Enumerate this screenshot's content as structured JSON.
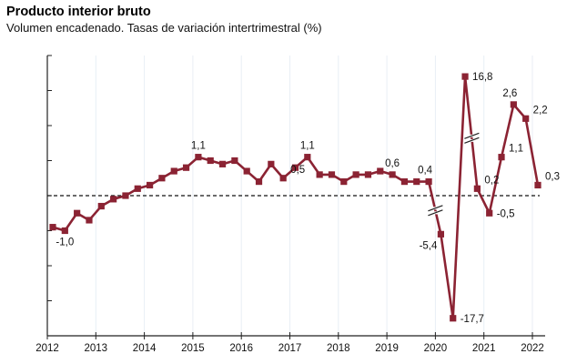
{
  "chart_data": {
    "type": "line",
    "title": "Producto interior bruto",
    "subtitle": "Volumen encadenado. Tasas de variación intertrimestral (%)",
    "xlabel": "",
    "ylabel": "",
    "ylim": [
      -4,
      4
    ],
    "y_axis_broken": true,
    "y_tick_values": [
      -4,
      -3,
      -2,
      -1,
      0,
      1,
      2,
      3,
      4
    ],
    "y_tick_labels_shown": false,
    "x_tick_labels": [
      "2012",
      "2013",
      "2014",
      "2015",
      "2016",
      "2017",
      "2018",
      "2019",
      "2020",
      "2021",
      "2022"
    ],
    "grid": "vertical-at-years",
    "reference_line": {
      "value": 0,
      "style": "dashed"
    },
    "series": [
      {
        "name": "PIB",
        "color": "#8b2333",
        "x": [
          "2012T1",
          "2012T2",
          "2012T3",
          "2012T4",
          "2013T1",
          "2013T2",
          "2013T3",
          "2013T4",
          "2014T1",
          "2014T2",
          "2014T3",
          "2014T4",
          "2015T1",
          "2015T2",
          "2015T3",
          "2015T4",
          "2016T1",
          "2016T2",
          "2016T3",
          "2016T4",
          "2017T1",
          "2017T2",
          "2017T3",
          "2017T4",
          "2018T1",
          "2018T2",
          "2018T3",
          "2018T4",
          "2019T1",
          "2019T2",
          "2019T3",
          "2019T4",
          "2020T1",
          "2020T2",
          "2020T3",
          "2020T4",
          "2021T1",
          "2021T2",
          "2021T3",
          "2021T4",
          "2022T1"
        ],
        "values": [
          -0.9,
          -1.0,
          -0.5,
          -0.7,
          -0.3,
          -0.1,
          0.0,
          0.2,
          0.3,
          0.5,
          0.7,
          0.8,
          1.1,
          1.0,
          0.9,
          1.0,
          0.7,
          0.4,
          0.9,
          0.5,
          0.8,
          1.1,
          0.6,
          0.6,
          0.4,
          0.6,
          0.6,
          0.7,
          0.6,
          0.4,
          0.4,
          0.4,
          -5.4,
          -17.7,
          16.8,
          0.2,
          -0.5,
          1.1,
          2.6,
          2.2,
          0.3
        ],
        "plotted_values_on_broken_axis": [
          -0.9,
          -1.0,
          -0.5,
          -0.7,
          -0.3,
          -0.1,
          0.0,
          0.2,
          0.3,
          0.5,
          0.7,
          0.8,
          1.1,
          1.0,
          0.9,
          1.0,
          0.7,
          0.4,
          0.9,
          0.5,
          0.8,
          1.1,
          0.6,
          0.6,
          0.4,
          0.6,
          0.6,
          0.7,
          0.6,
          0.4,
          0.4,
          0.4,
          -1.1,
          -3.5,
          3.4,
          0.2,
          -0.5,
          1.1,
          2.6,
          2.2,
          0.3
        ]
      }
    ],
    "annotations": [
      {
        "index": 1,
        "text": "-1,0",
        "pos": "below"
      },
      {
        "index": 12,
        "text": "1,1",
        "pos": "above"
      },
      {
        "index": 19,
        "text": "0,5",
        "pos": "right-up"
      },
      {
        "index": 21,
        "text": "1,1",
        "pos": "above"
      },
      {
        "index": 28,
        "text": "0,6",
        "pos": "above"
      },
      {
        "index": 31,
        "text": "0,4",
        "pos": "above-left"
      },
      {
        "index": 32,
        "text": "-5,4",
        "pos": "below-left"
      },
      {
        "index": 33,
        "text": "-17,7",
        "pos": "right"
      },
      {
        "index": 34,
        "text": "16,8",
        "pos": "right"
      },
      {
        "index": 35,
        "text": "0,2",
        "pos": "right-up"
      },
      {
        "index": 36,
        "text": "-0,5",
        "pos": "right"
      },
      {
        "index": 37,
        "text": "1,1",
        "pos": "right-up"
      },
      {
        "index": 38,
        "text": "2,6",
        "pos": "above-left"
      },
      {
        "index": 39,
        "text": "2,2",
        "pos": "right-up"
      },
      {
        "index": 40,
        "text": "0,3",
        "pos": "right-up"
      }
    ],
    "axis_breaks": [
      {
        "between_index": [
          31,
          32
        ]
      },
      {
        "between_index": [
          34,
          35
        ]
      }
    ]
  }
}
